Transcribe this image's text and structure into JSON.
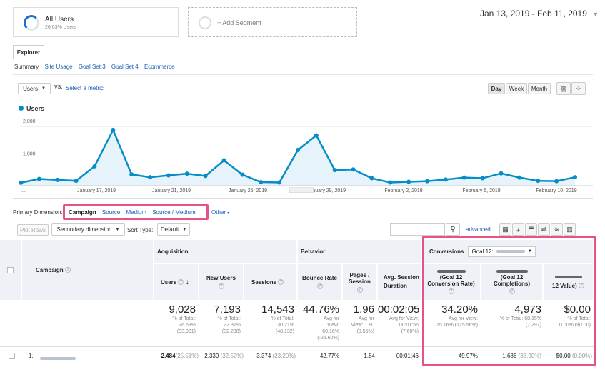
{
  "segments": {
    "segment1_name": "All Users",
    "segment1_sub": "26.63% Users",
    "segment2_name": "+ Add Segment"
  },
  "date_range": "Jan 13, 2019 - Feb 11, 2019",
  "tabs": {
    "explorer": "Explorer"
  },
  "subtabs": [
    "Summary",
    "Site Usage",
    "Goal Set 3",
    "Goal Set 4",
    "Ecommerce"
  ],
  "metric": {
    "select_label": "Users",
    "vs": "VS.",
    "select_metric": "Select a metric"
  },
  "granularity": [
    "Day",
    "Week",
    "Month"
  ],
  "chart_legend": "Users",
  "chart_data": {
    "type": "line",
    "title": "",
    "ylabel": "",
    "ylim": [
      0,
      2200
    ],
    "yticks": [
      "2,000",
      "1,000"
    ],
    "xticks": [
      "...",
      "January 17, 2019",
      "January 21, 2019",
      "January 25, 2019",
      "January 29, 2019",
      "February 2, 2019",
      "February 6, 2019",
      "February 10, 2019"
    ],
    "series": [
      {
        "name": "Users",
        "values": [
          90,
          210,
          180,
          150,
          600,
          1720,
          350,
          260,
          320,
          370,
          300,
          780,
          340,
          110,
          100,
          1100,
          1550,
          480,
          500,
          230,
          100,
          120,
          140,
          190,
          250,
          230,
          380,
          250,
          150,
          140,
          260
        ]
      }
    ]
  },
  "dimension": {
    "label": "Primary Dimension:",
    "options": [
      "Campaign",
      "Source",
      "Medium",
      "Source / Medium"
    ],
    "other": "Other"
  },
  "controls": {
    "plot_rows": "Plot Rows",
    "secondary": "Secondary dimension",
    "sort_type": "Sort Type:",
    "sort_value": "Default",
    "advanced": "advanced"
  },
  "table": {
    "campaign_header": "Campaign",
    "group_acquisition": "Acquisition",
    "group_behavior": "Behavior",
    "conversions_label": "Conversions",
    "goal_select": "Goal 12:",
    "columns": [
      "Users",
      "New Users",
      "Sessions",
      "Bounce Rate",
      "Pages / Session",
      "Avg. Session Duration",
      "(Goal 12 Conversion Rate)",
      "(Goal 12 Completions)",
      "12 Value)"
    ],
    "totals": [
      {
        "big": "9,028",
        "sub": [
          "% of Total:",
          "26.63%",
          "(33,901)"
        ]
      },
      {
        "big": "7,193",
        "sub": [
          "% of Total:",
          "22.31%",
          "(32,238)"
        ]
      },
      {
        "big": "14,543",
        "sub": [
          "% of Total:",
          "30.21%",
          "(48,132)"
        ]
      },
      {
        "big": "44.76%",
        "sub": [
          "Avg for",
          "View:",
          "60.16%",
          "(-25.60%)"
        ]
      },
      {
        "big": "1.96",
        "sub": [
          "Avg for",
          "View: 1.80",
          "(8.55%)"
        ]
      },
      {
        "big": "00:02:05",
        "sub": [
          "Avg for View:",
          "00:01:56",
          "(7.60%)"
        ]
      },
      {
        "big": "34.20%",
        "sub": [
          "Avg for View:",
          "15.16% (125.56%)"
        ]
      },
      {
        "big": "4,973",
        "sub": [
          "% of Total: 68.15%",
          "(7,297)"
        ]
      },
      {
        "big": "$0.00",
        "sub": [
          "% of Total:",
          "0.00% ($0.00)"
        ]
      }
    ],
    "row1": {
      "index": "1.",
      "users": "2,484",
      "users_pct": "(25.51%)",
      "new_users": "2,339",
      "new_users_pct": "(32.52%)",
      "sessions": "3,374",
      "sessions_pct": "(23.20%)",
      "bounce": "42.77%",
      "pages": "1.84",
      "duration": "00:01:46",
      "conv_rate": "49.97%",
      "completions": "1,686",
      "completions_pct": "(33.90%)",
      "value": "$0.00",
      "value_pct": "(0.00%)"
    }
  }
}
